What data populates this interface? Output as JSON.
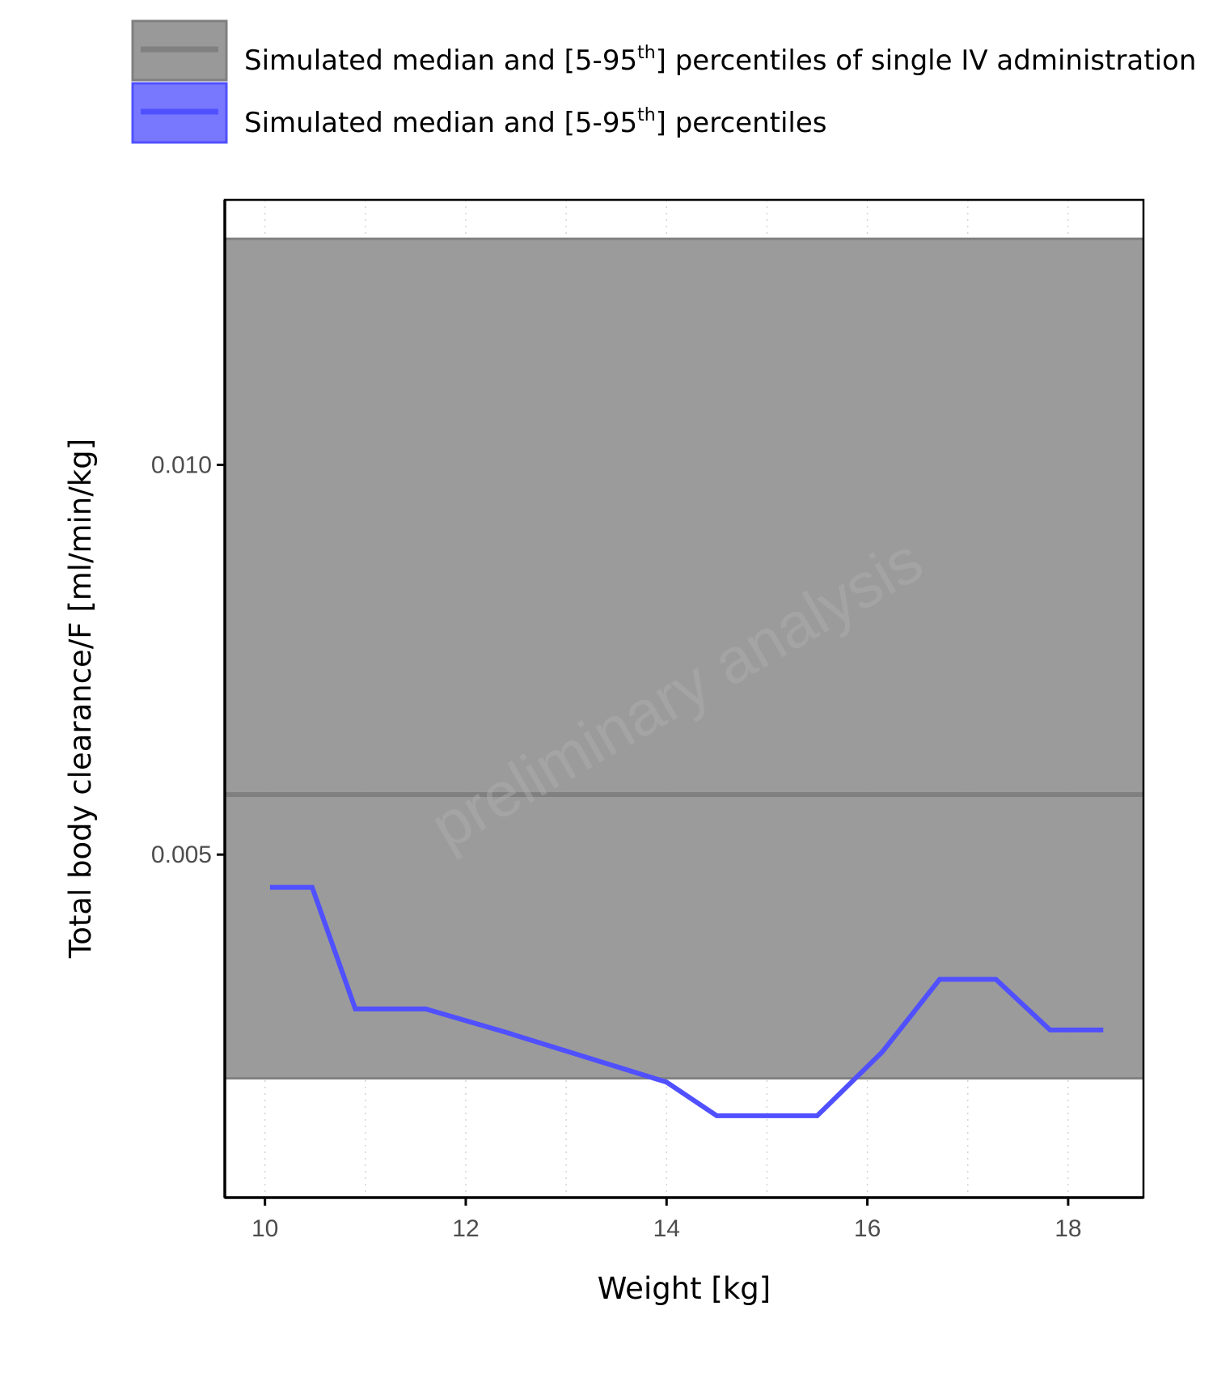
{
  "chart_data": {
    "type": "line",
    "xlabel": "Weight [kg]",
    "ylabel": "Total body clearance/F [ml/min/kg]",
    "xlim": [
      9.6,
      18.75
    ],
    "ylim": [
      0.0006,
      0.0134
    ],
    "x_ticks": [
      10,
      12,
      14,
      16,
      18
    ],
    "x_tick_labels": [
      "10",
      "12",
      "14",
      "16",
      "18"
    ],
    "y_ticks": [
      0.005,
      0.01
    ],
    "y_tick_labels": [
      "0.005",
      "0.010"
    ],
    "grid": true,
    "legend_position": "top",
    "watermark": "preliminary analysis",
    "reference_band": {
      "legend": {
        "prefix": "Simulated median and [5-95",
        "sup": "th",
        "suffix": "] percentiles of single IV administration"
      },
      "median": 0.00577,
      "lower": 0.00213,
      "upper": 0.0129,
      "color": "#999999",
      "line_color": "#808080"
    },
    "series": [
      {
        "legend": {
          "prefix": "Simulated median and [5-95",
          "sup": "th",
          "suffix": "] percentiles"
        },
        "color": "#5050ff",
        "fill_color": "#7878ff",
        "x": [
          10.05,
          10.47,
          10.9,
          11.6,
          12.4,
          13.2,
          14.0,
          14.5,
          15.0,
          15.5,
          16.15,
          16.72,
          17.28,
          17.82,
          18.35
        ],
        "y": [
          0.00458,
          0.00458,
          0.00302,
          0.00302,
          0.00272,
          0.0024,
          0.00208,
          0.00165,
          0.00165,
          0.00165,
          0.00247,
          0.0034,
          0.0034,
          0.00275,
          0.00275
        ]
      }
    ]
  }
}
